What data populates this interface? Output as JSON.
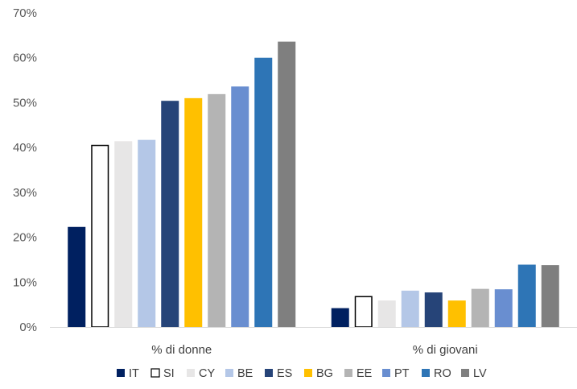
{
  "chart_data": {
    "type": "bar",
    "title": "",
    "xlabel": "",
    "ylabel": "",
    "categories": [
      "% di donne",
      "% di giovani"
    ],
    "series": [
      {
        "name": "IT",
        "color": "#002060",
        "values": [
          22.3,
          4.2
        ]
      },
      {
        "name": "SI",
        "color": "#ffffff",
        "stroke": "#000000",
        "values": [
          40.6,
          6.9
        ]
      },
      {
        "name": "CY",
        "color": "#e7e6e6",
        "values": [
          41.4,
          5.9
        ]
      },
      {
        "name": "BE",
        "color": "#b4c7e7",
        "values": [
          41.7,
          8.1
        ]
      },
      {
        "name": "ES",
        "color": "#264478",
        "values": [
          50.4,
          7.7
        ]
      },
      {
        "name": "BG",
        "color": "#ffc000",
        "values": [
          51.0,
          5.9
        ]
      },
      {
        "name": "EE",
        "color": "#b4b4b4",
        "values": [
          51.9,
          8.5
        ]
      },
      {
        "name": "PT",
        "color": "#698ed0",
        "values": [
          53.6,
          8.4
        ]
      },
      {
        "name": "RO",
        "color": "#2e75b6",
        "values": [
          60.0,
          13.9
        ]
      },
      {
        "name": "LV",
        "color": "#7f7f7f",
        "values": [
          63.6,
          13.8
        ]
      }
    ],
    "ylim": [
      0,
      70
    ],
    "yticks": [
      "0%",
      "10%",
      "20%",
      "30%",
      "40%",
      "50%",
      "60%",
      "70%"
    ],
    "grid": false,
    "legend_position": "bottom"
  }
}
